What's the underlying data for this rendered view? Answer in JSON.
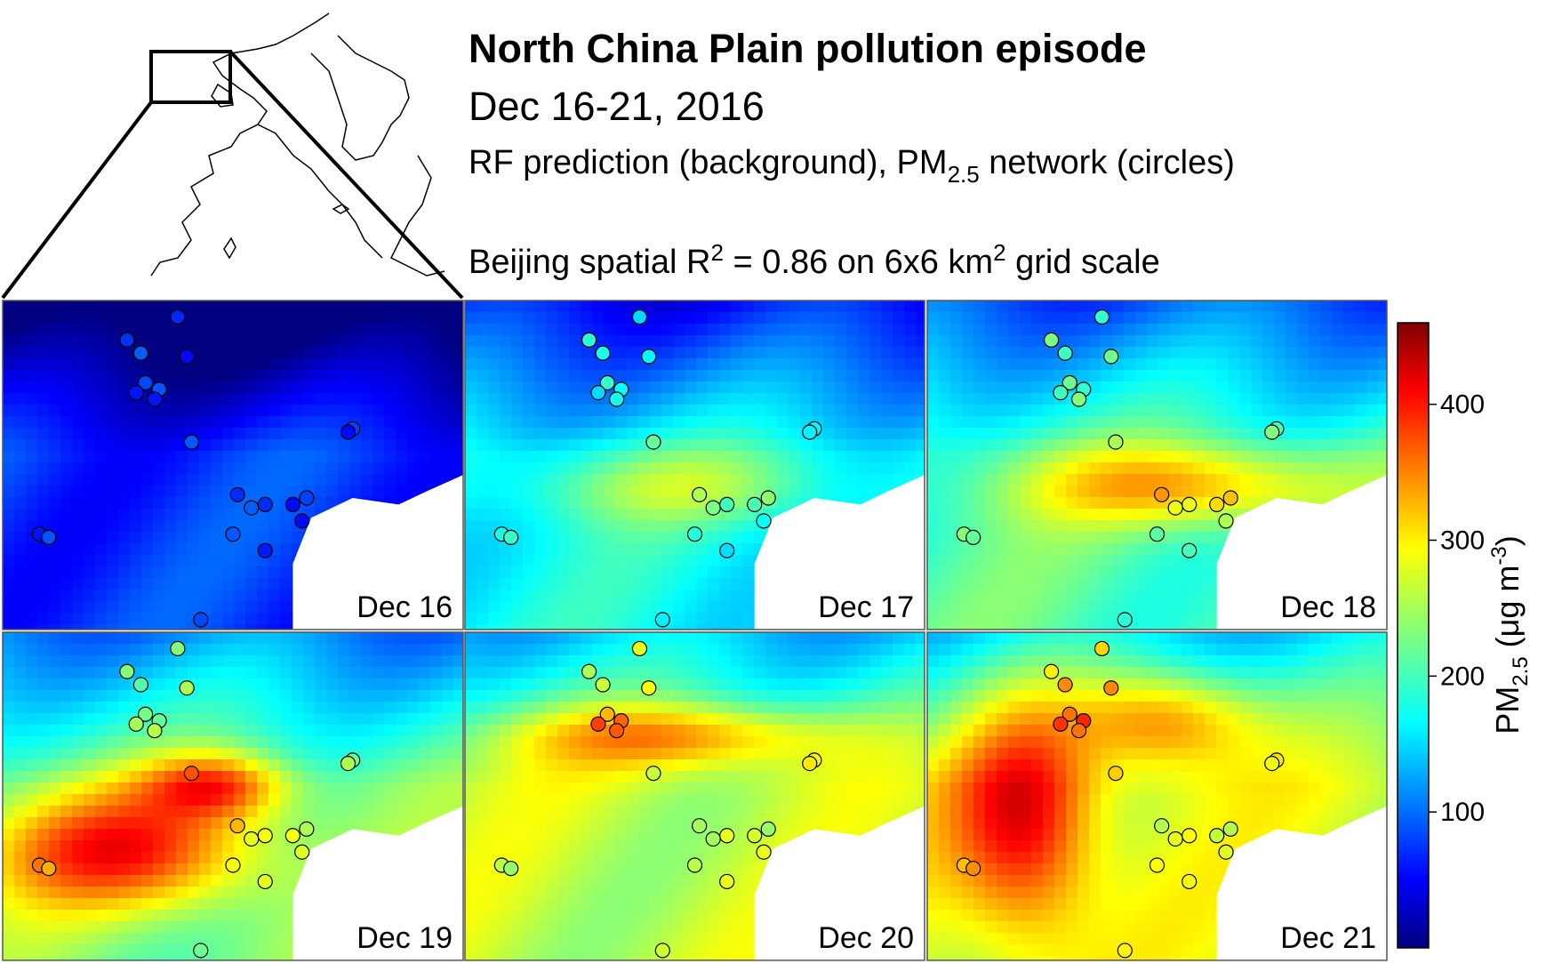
{
  "header": {
    "title": "North China Plain pollution episode",
    "dates": "Dec 16-21, 2016",
    "subtitle_prefix": "RF prediction (background), PM",
    "subtitle_sub": "2.5",
    "subtitle_suffix": " network (circles)",
    "stat_prefix": "Beijing spatial R",
    "stat_sup1": "2",
    "stat_mid": " = 0.86 on 6x6 km",
    "stat_sup2": "2",
    "stat_suffix": " grid scale"
  },
  "panels": [
    {
      "label": "Dec 16",
      "base": 80,
      "hotspots": []
    },
    {
      "label": "Dec 17",
      "base": 175,
      "hotspots": [
        [
          0.45,
          0.55,
          0.35,
          0.12,
          70
        ]
      ]
    },
    {
      "label": "Dec 18",
      "base": 210,
      "hotspots": [
        [
          0.55,
          0.55,
          0.35,
          0.12,
          120
        ]
      ]
    },
    {
      "label": "Dec 19",
      "base": 230,
      "hotspots": [
        [
          0.25,
          0.65,
          0.3,
          0.18,
          160
        ],
        [
          0.45,
          0.45,
          0.15,
          0.1,
          140
        ]
      ]
    },
    {
      "label": "Dec 20",
      "base": 260,
      "hotspots": [
        [
          0.45,
          0.3,
          0.35,
          0.1,
          120
        ]
      ]
    },
    {
      "label": "Dec 21",
      "base": 270,
      "hotspots": [
        [
          0.2,
          0.55,
          0.15,
          0.35,
          150
        ],
        [
          0.5,
          0.25,
          0.2,
          0.15,
          130
        ]
      ]
    }
  ],
  "colorbar": {
    "label_prefix": "PM",
    "label_sub": "2.5",
    "label_mid": " (μg m",
    "label_sup": "-3",
    "label_suffix": ")",
    "ticks": [
      "100",
      "200",
      "300",
      "400"
    ],
    "tick_values": [
      100,
      200,
      300,
      400
    ],
    "vmin": 0,
    "vmax": 460,
    "colormap": "jet"
  },
  "colors": {
    "water": "#ffffff",
    "outline": "#000000",
    "frame": "#555555"
  }
}
